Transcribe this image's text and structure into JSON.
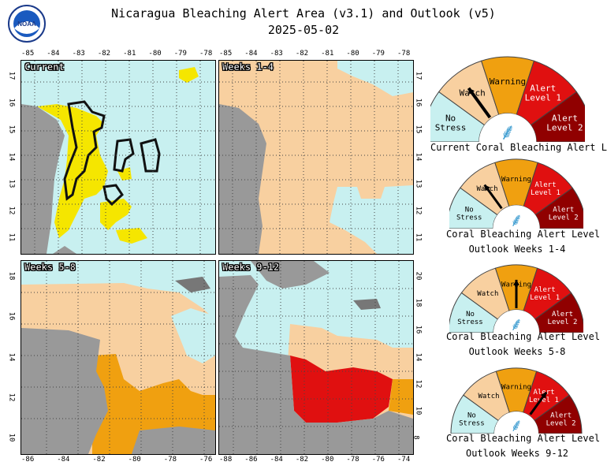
{
  "header": {
    "title": "Nicaragua Bleaching Alert Area (v3.1) and Outlook (v5)",
    "date": "2025-05-02",
    "logo_text": "NOAA"
  },
  "colors": {
    "no_stress": "#c8f0f0",
    "watch": "#f8d0a0",
    "warning": "#f0a010",
    "alert1": "#e01010",
    "alert2": "#900000",
    "yellow_watch": "#f5e600",
    "land": "#999999",
    "land_dark": "#777777"
  },
  "panels": [
    {
      "label": "Current",
      "x_ticks": [
        "-85",
        "-84",
        "-83",
        "-82",
        "-81",
        "-80",
        "-79",
        "-78"
      ],
      "y_ticks_left": [
        "17",
        "16",
        "15",
        "14",
        "13",
        "12",
        "11"
      ]
    },
    {
      "label": "Weeks 1-4",
      "x_ticks": [
        "-85",
        "-84",
        "-83",
        "-82",
        "-81",
        "-80",
        "-79",
        "-78"
      ],
      "y_ticks_right": [
        "17",
        "16",
        "15",
        "14",
        "13",
        "12",
        "11"
      ]
    },
    {
      "label": "Weeks 5-8",
      "x_ticks": [
        "-86",
        "-84",
        "-82",
        "-80",
        "-78",
        "-76"
      ],
      "y_ticks_left": [
        "18",
        "16",
        "14",
        "12",
        "10"
      ]
    },
    {
      "label": "Weeks 9-12",
      "x_ticks": [
        "-88",
        "-86",
        "-84",
        "-82",
        "-80",
        "-78",
        "-76",
        "-74"
      ],
      "y_ticks_right": [
        "20",
        "18",
        "16",
        "14",
        "12",
        "10",
        "8"
      ]
    }
  ],
  "gauges": [
    {
      "caption_1": "Current Coral Bleaching Alert Level",
      "caption_2": "",
      "level": "Watch",
      "labels": {
        "no_stress": "No\nStress",
        "watch": "Watch",
        "warning": "Warning",
        "alert1": "Alert\nLevel 1",
        "alert2": "Alert\nLevel 2"
      }
    },
    {
      "caption_1": "Coral Bleaching Alert Level",
      "caption_2": "Outlook Weeks 1-4",
      "level": "Watch",
      "labels": {
        "no_stress": "No\nStress",
        "watch": "Watch",
        "warning": "Warning",
        "alert1": "Alert\nLevel 1",
        "alert2": "Alert\nLevel 2"
      }
    },
    {
      "caption_1": "Coral Bleaching Alert Level",
      "caption_2": "Outlook Weeks 5-8",
      "level": "Warning",
      "labels": {
        "no_stress": "No\nStress",
        "watch": "Watch",
        "warning": "Warning",
        "alert1": "Alert\nLevel 1",
        "alert2": "Alert\nLevel 2"
      }
    },
    {
      "caption_1": "Coral Bleaching Alert Level",
      "caption_2": "Outlook Weeks 9-12",
      "level": "Alert Level 1",
      "labels": {
        "no_stress": "No\nStress",
        "watch": "Watch",
        "warning": "Warning",
        "alert1": "Alert\nLevel 1",
        "alert2": "Alert\nLevel 2"
      }
    }
  ]
}
